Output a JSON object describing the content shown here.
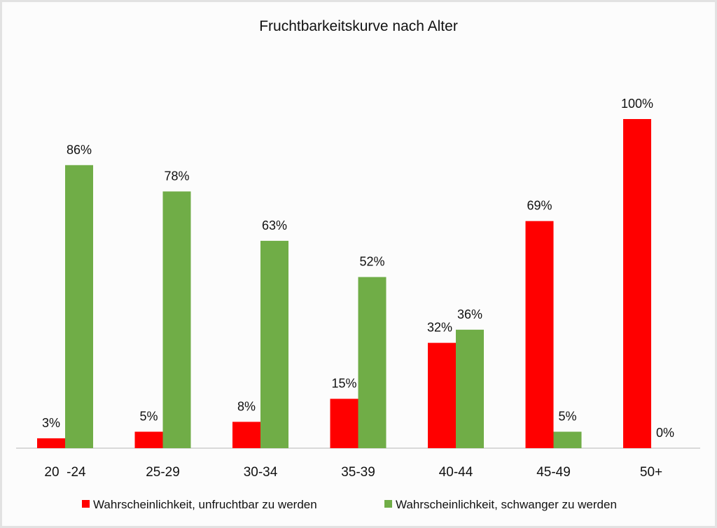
{
  "chart_data": {
    "type": "bar",
    "title": "Fruchtbarkeitskurve nach Alter",
    "xlabel": "",
    "ylabel": "",
    "ylim": [
      0,
      100
    ],
    "grid": false,
    "legend_position": "bottom",
    "categories": [
      "20  -24",
      "25-29",
      "30-34",
      "35-39",
      "40-44",
      "45-49",
      "50+"
    ],
    "series": [
      {
        "name": "Wahrscheinlichkeit, unfruchtbar zu werden",
        "color": "#ff0000",
        "values": [
          3,
          5,
          8,
          15,
          32,
          69,
          100
        ],
        "labels": [
          "3%",
          "5%",
          "8%",
          "15%",
          "32%",
          "69%",
          "100%"
        ]
      },
      {
        "name": "Wahrscheinlichkeit, schwanger zu werden",
        "color": "#70ad47",
        "values": [
          86,
          78,
          63,
          52,
          36,
          5,
          0
        ],
        "labels": [
          "86%",
          "78%",
          "63%",
          "52%",
          "36%",
          "5%",
          "0%"
        ]
      }
    ]
  }
}
